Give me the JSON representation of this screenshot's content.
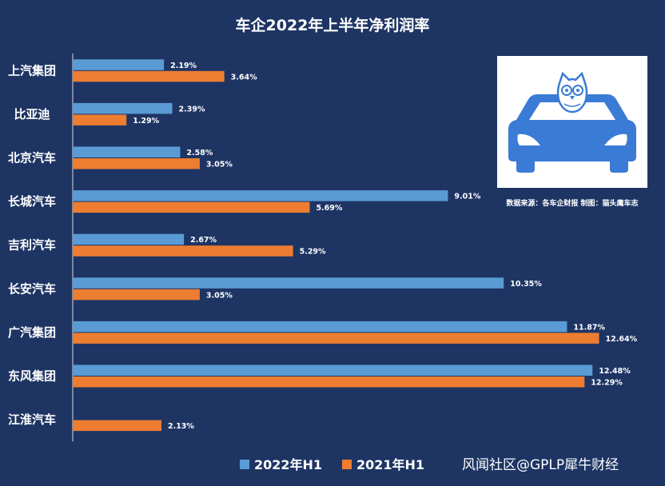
{
  "chart_data": {
    "type": "bar",
    "orientation": "horizontal",
    "title": "车企2022年上半年净利润率",
    "categories": [
      "上汽集团",
      "比亚迪",
      "北京汽车",
      "长城汽车",
      "吉利汽车",
      "长安汽车",
      "广汽集团",
      "东风集团",
      "江淮汽车"
    ],
    "series": [
      {
        "name": "2022年H1",
        "color": "#5b9bd5",
        "values": [
          2.19,
          2.39,
          2.58,
          9.01,
          2.67,
          10.35,
          11.87,
          12.48,
          null
        ],
        "labels": [
          "2.19%",
          "2.39%",
          "2.58%",
          "9.01%",
          "2.67%",
          "10.35%",
          "11.87%",
          "12.48%",
          ""
        ]
      },
      {
        "name": "2021年H1",
        "color": "#ed7d31",
        "values": [
          3.64,
          1.29,
          3.05,
          5.69,
          5.29,
          3.05,
          12.64,
          12.29,
          2.13
        ],
        "labels": [
          "3.64%",
          "1.29%",
          "3.05%",
          "5.69%",
          "5.29%",
          "3.05%",
          "12.64%",
          "12.29%",
          "2.13%"
        ]
      }
    ],
    "xlim": [
      0,
      13.5
    ],
    "grid": false,
    "legend_position": "bottom"
  },
  "source_note": "数据来源：各车企财报  制图：猫头鹰车志",
  "logo_icon": "owl-car-logo-icon",
  "watermark": "风闻社区@GPLP犀牛财经",
  "colors": {
    "background": "#1e3564",
    "axis": "#d9d9d9",
    "logo_blue": "#3a7bd5",
    "logo_panel": "#ffffff"
  }
}
